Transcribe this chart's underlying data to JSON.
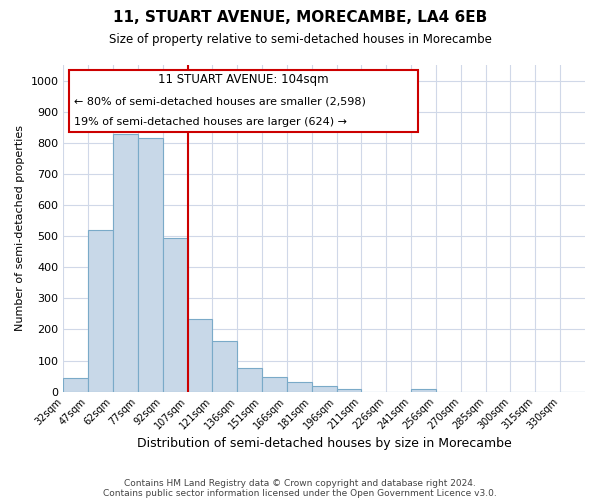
{
  "title": "11, STUART AVENUE, MORECAMBE, LA4 6EB",
  "subtitle": "Size of property relative to semi-detached houses in Morecambe",
  "xlabel": "Distribution of semi-detached houses by size in Morecambe",
  "ylabel": "Number of semi-detached properties",
  "bins": [
    "32sqm",
    "47sqm",
    "62sqm",
    "77sqm",
    "92sqm",
    "107sqm",
    "121sqm",
    "136sqm",
    "151sqm",
    "166sqm",
    "181sqm",
    "196sqm",
    "211sqm",
    "226sqm",
    "241sqm",
    "256sqm",
    "270sqm",
    "285sqm",
    "300sqm",
    "315sqm",
    "330sqm"
  ],
  "values": [
    43,
    520,
    828,
    815,
    495,
    235,
    163,
    75,
    46,
    32,
    18,
    10,
    0,
    0,
    8,
    0,
    0,
    0,
    0,
    0,
    0
  ],
  "bar_color": "#c8d8e8",
  "bar_edge_color": "#7aaac8",
  "vline_x_index": 5,
  "vline_color": "#cc0000",
  "annotation_title": "11 STUART AVENUE: 104sqm",
  "annotation_line1": "← 80% of semi-detached houses are smaller (2,598)",
  "annotation_line2": "19% of semi-detached houses are larger (624) →",
  "annotation_box_color": "#ffffff",
  "annotation_box_edge_color": "#cc0000",
  "ylim": [
    0,
    1050
  ],
  "yticks": [
    0,
    100,
    200,
    300,
    400,
    500,
    600,
    700,
    800,
    900,
    1000
  ],
  "footer1": "Contains HM Land Registry data © Crown copyright and database right 2024.",
  "footer2": "Contains public sector information licensed under the Open Government Licence v3.0.",
  "bg_color": "#ffffff",
  "grid_color": "#d0d8e8"
}
